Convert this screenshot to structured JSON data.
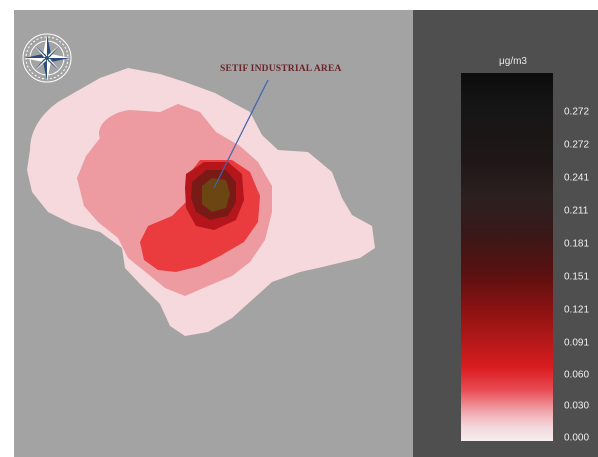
{
  "map": {
    "annotation_label": "SETIF INDUSTRIAL AREA"
  },
  "legend": {
    "unit": "μg/m3",
    "ticks": [
      "0.272",
      "0.272",
      "0.241",
      "0.211",
      "0.181",
      "0.151",
      "0.121",
      "0.091",
      "0.060",
      "0.030",
      "0.000"
    ]
  },
  "colors": {
    "background": "#a3a3a3",
    "legend_background": "#4f4f4f",
    "contour_lightest": "#f5d9dc",
    "contour_light": "#ed9ba0",
    "contour_mid": "#ea3b3f",
    "contour_dark": "#b5161c",
    "contour_darkest": "#7a1a16",
    "core": "#6b4612",
    "pointer_line": "#3e63b0"
  },
  "icons": {
    "compass": "compass-rose-icon"
  }
}
